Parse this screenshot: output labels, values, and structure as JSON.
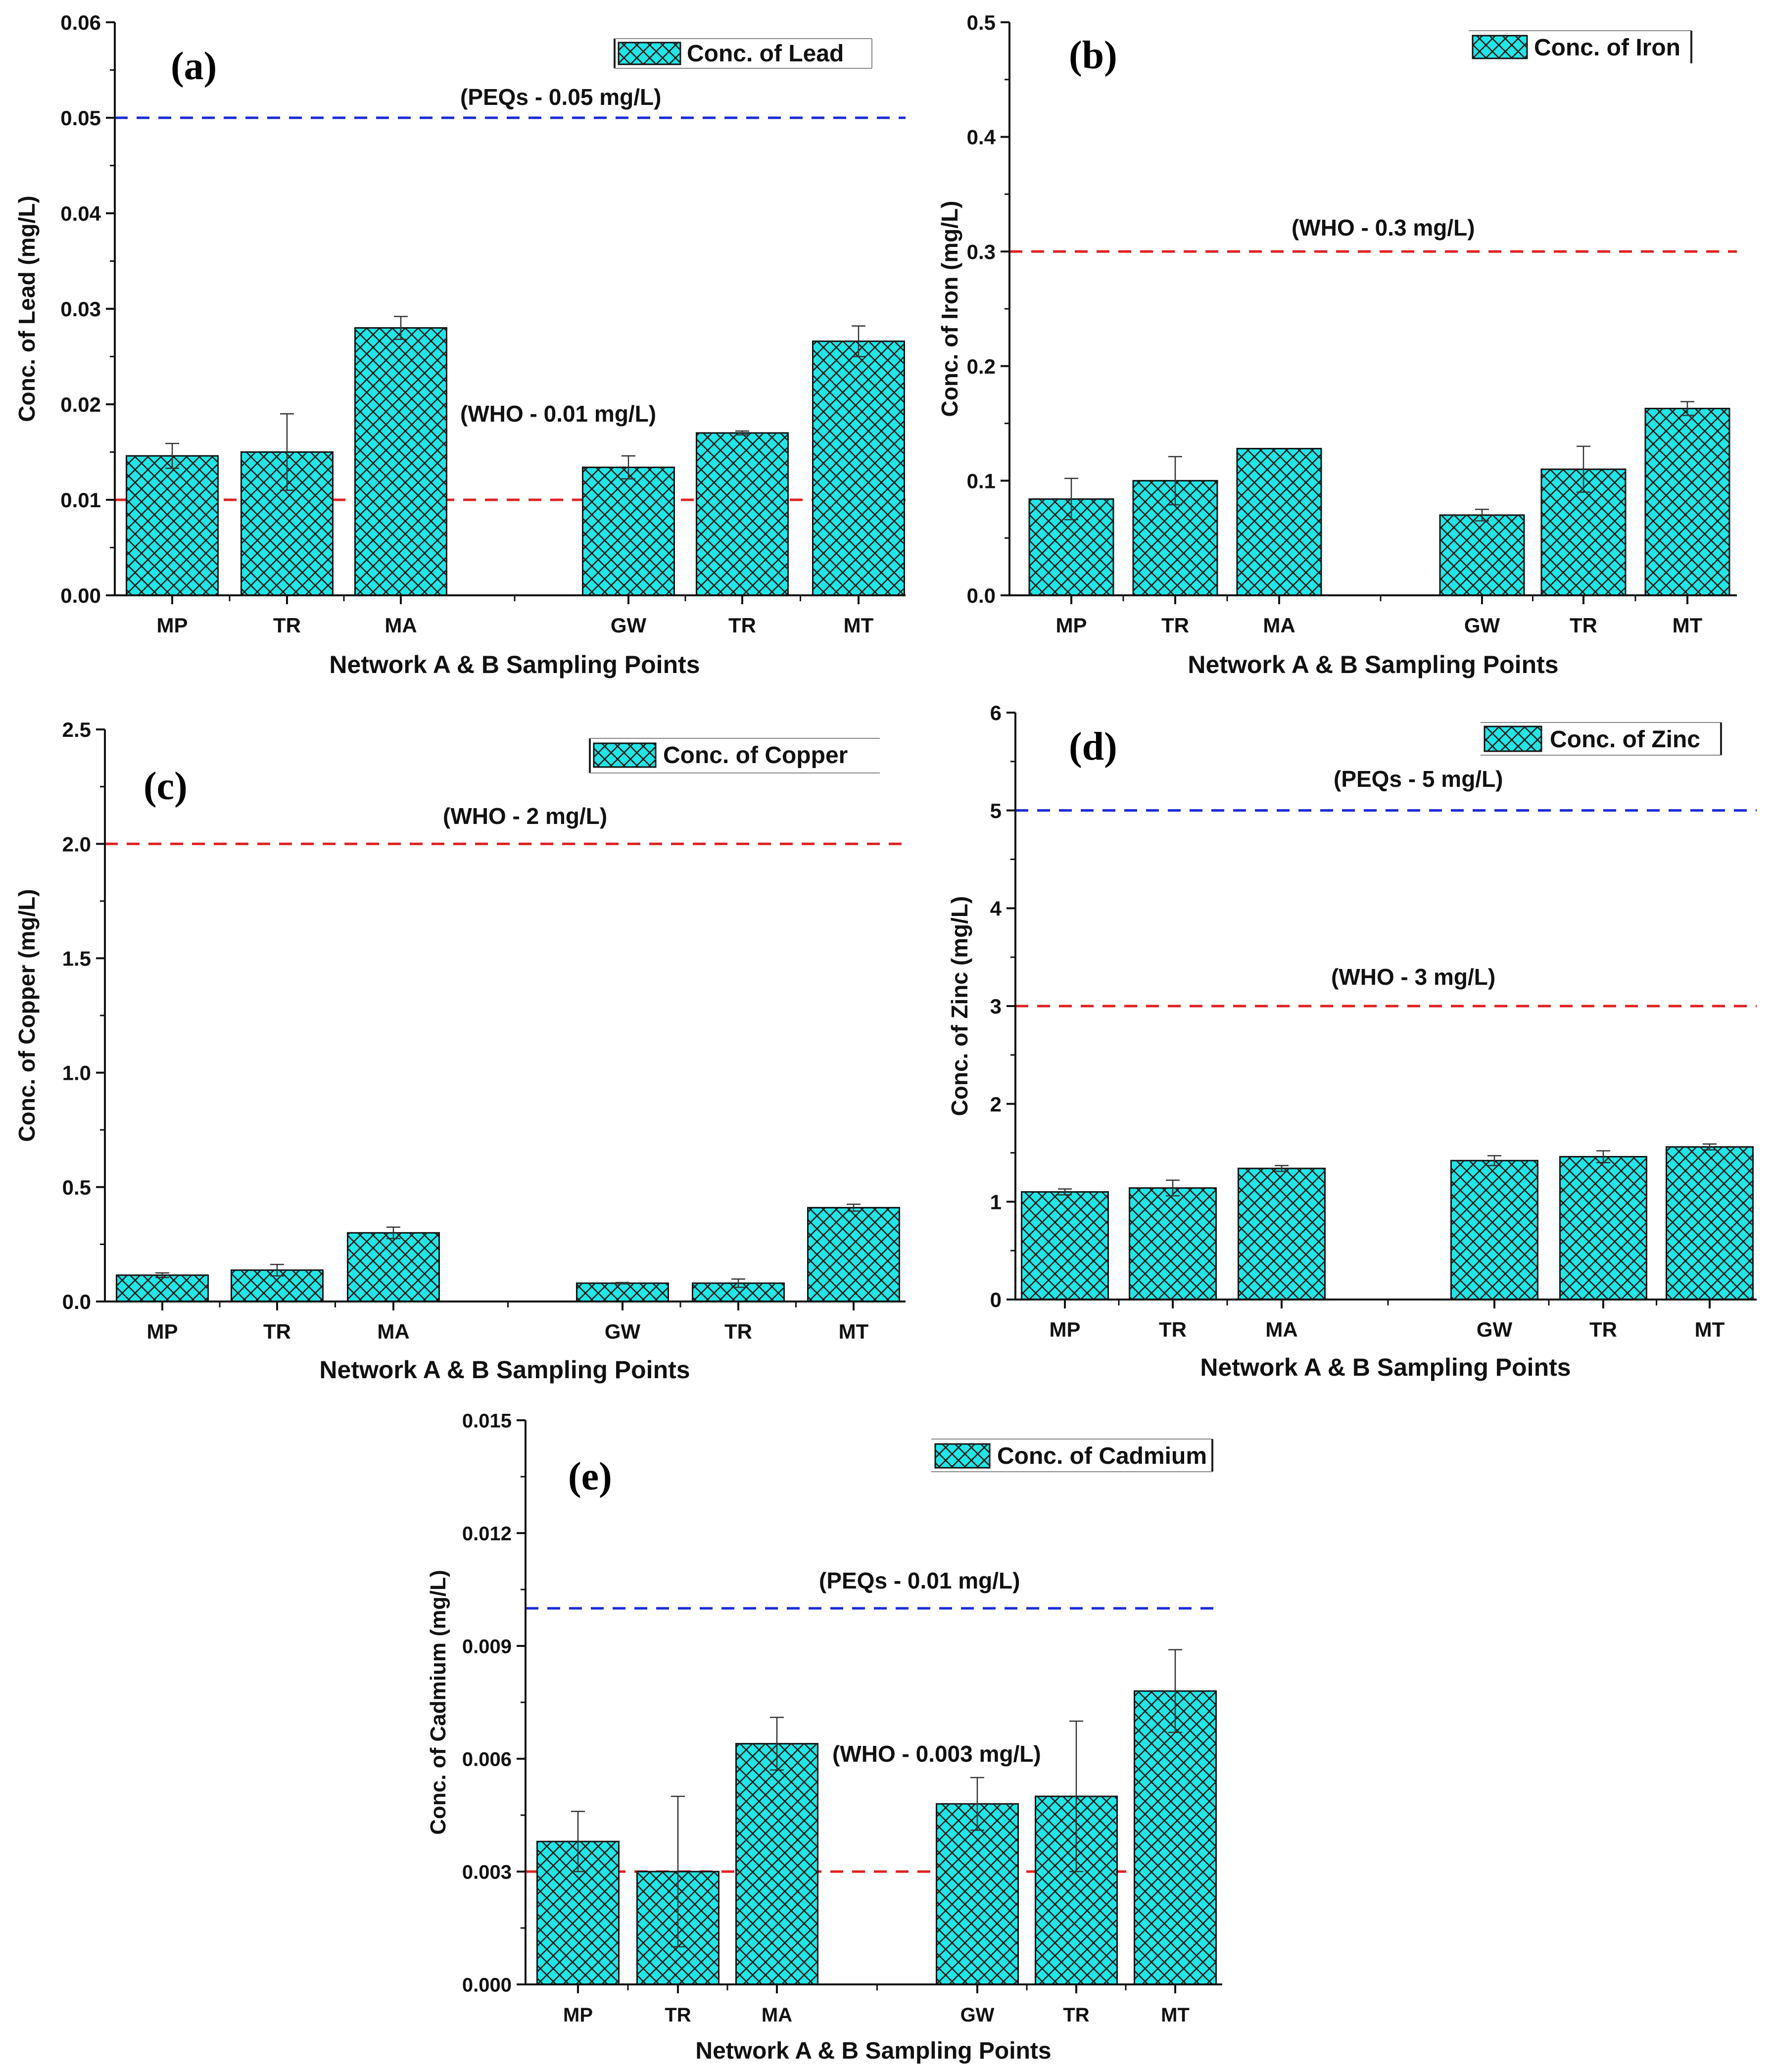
{
  "colors": {
    "bar_fill": "#22e5e5",
    "hatch": "#1a1a1a",
    "axis": "#111111",
    "who_line": "#e02020",
    "peq_line": "#1a2ad6"
  },
  "chart_data": [
    {
      "type": "bar",
      "panel": "(a)",
      "categories": [
        "MP",
        "TR",
        "MA",
        "GW",
        "TR",
        "MT"
      ],
      "values": [
        0.0146,
        0.015,
        0.028,
        0.0134,
        0.017,
        0.0266
      ],
      "errors": [
        0.0013,
        0.004,
        0.0012,
        0.0012,
        0.0002,
        0.0016
      ],
      "ylim": [
        0,
        0.06
      ],
      "yticks": [
        "0.00",
        "0.01",
        "0.02",
        "0.03",
        "0.04",
        "0.05",
        "0.06"
      ],
      "ytick_values": [
        0,
        0.01,
        0.02,
        0.03,
        0.04,
        0.05,
        0.06
      ],
      "xlabel": "Network A & B Sampling Points",
      "ylabel": "Conc. of Lead (mg/L)",
      "legend": "Conc. of Lead",
      "reference_lines": [
        {
          "label": "(PEQs - 0.05 mg/L)",
          "value": 0.05,
          "kind": "peq"
        },
        {
          "label": "(WHO - 0.01 mg/L)",
          "value": 0.01,
          "kind": "who"
        }
      ]
    },
    {
      "type": "bar",
      "panel": "(b)",
      "categories": [
        "MP",
        "TR",
        "MA",
        "GW",
        "TR",
        "MT"
      ],
      "values": [
        0.084,
        0.1,
        0.128,
        0.07,
        0.11,
        0.163
      ],
      "errors": [
        0.018,
        0.021,
        0.0,
        0.005,
        0.02,
        0.006
      ],
      "ylim": [
        0,
        0.5
      ],
      "yticks": [
        "0.0",
        "0.1",
        "0.2",
        "0.3",
        "0.4",
        "0.5"
      ],
      "ytick_values": [
        0,
        0.1,
        0.2,
        0.3,
        0.4,
        0.5
      ],
      "xlabel": "Network A & B Sampling Points",
      "ylabel": "Conc. of Iron (mg/L)",
      "legend": "Conc. of Iron",
      "reference_lines": [
        {
          "label": "(WHO - 0.3 mg/L)",
          "value": 0.3,
          "kind": "who"
        }
      ]
    },
    {
      "type": "bar",
      "panel": "(c)",
      "categories": [
        "MP",
        "TR",
        "MA",
        "GW",
        "TR",
        "MT"
      ],
      "values": [
        0.115,
        0.137,
        0.3,
        0.08,
        0.08,
        0.41
      ],
      "errors": [
        0.01,
        0.025,
        0.025,
        0.003,
        0.018,
        0.015
      ],
      "ylim": [
        0,
        2.5
      ],
      "yticks": [
        "0.0",
        "0.5",
        "1.0",
        "1.5",
        "2.0",
        "2.5"
      ],
      "ytick_values": [
        0,
        0.5,
        1.0,
        1.5,
        2.0,
        2.5
      ],
      "xlabel": "Network A & B Sampling Points",
      "ylabel": "Conc. of Copper (mg/L)",
      "legend": "Conc. of Copper",
      "reference_lines": [
        {
          "label": "(WHO - 2 mg/L)",
          "value": 2.0,
          "kind": "who"
        }
      ]
    },
    {
      "type": "bar",
      "panel": "(d)",
      "categories": [
        "MP",
        "TR",
        "MA",
        "GW",
        "TR",
        "MT"
      ],
      "values": [
        1.1,
        1.14,
        1.34,
        1.42,
        1.46,
        1.56
      ],
      "errors": [
        0.03,
        0.08,
        0.03,
        0.05,
        0.06,
        0.03
      ],
      "ylim": [
        0,
        6
      ],
      "yticks": [
        "0",
        "1",
        "2",
        "3",
        "4",
        "5",
        "6"
      ],
      "ytick_values": [
        0,
        1,
        2,
        3,
        4,
        5,
        6
      ],
      "xlabel": "Network A & B Sampling Points",
      "ylabel": "Conc. of Zinc (mg/L)",
      "legend": "Conc. of Zinc",
      "reference_lines": [
        {
          "label": "(PEQs - 5 mg/L)",
          "value": 5,
          "kind": "peq"
        },
        {
          "label": "(WHO - 3 mg/L)",
          "value": 3,
          "kind": "who"
        }
      ]
    },
    {
      "type": "bar",
      "panel": "(e)",
      "categories": [
        "MP",
        "TR",
        "MA",
        "GW",
        "TR",
        "MT"
      ],
      "values": [
        0.0038,
        0.003,
        0.0064,
        0.0048,
        0.005,
        0.0078
      ],
      "errors": [
        0.0008,
        0.002,
        0.0007,
        0.0007,
        0.002,
        0.0011
      ],
      "ylim": [
        0,
        0.015
      ],
      "yticks": [
        "0.000",
        "0.003",
        "0.006",
        "0.009",
        "0.012",
        "0.015"
      ],
      "ytick_values": [
        0,
        0.003,
        0.006,
        0.009,
        0.012,
        0.015
      ],
      "xlabel": "Network A & B Sampling Points",
      "ylabel": "Conc. of Cadmium (mg/L)",
      "legend": "Conc. of Cadmium",
      "reference_lines": [
        {
          "label": "(PEQs - 0.01 mg/L)",
          "value": 0.01,
          "kind": "peq"
        },
        {
          "label": "(WHO - 0.003 mg/L)",
          "value": 0.003,
          "kind": "who"
        }
      ]
    }
  ]
}
